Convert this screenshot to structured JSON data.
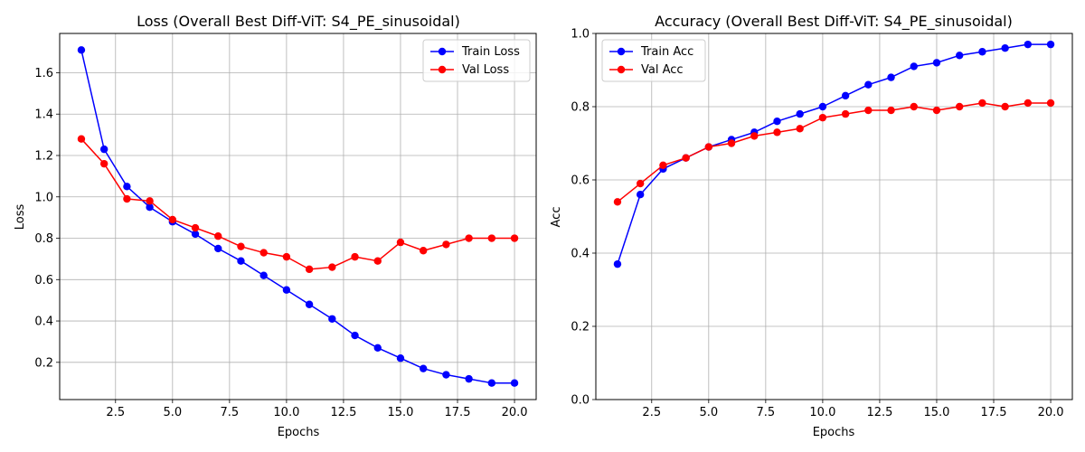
{
  "chart_data": [
    {
      "type": "line",
      "title": "Loss (Overall Best Diff-ViT: S4_PE_sinusoidal)",
      "xlabel": "Epochs",
      "ylabel": "Loss",
      "x": [
        1,
        2,
        3,
        4,
        5,
        6,
        7,
        8,
        9,
        10,
        11,
        12,
        13,
        14,
        15,
        16,
        17,
        18,
        19,
        20
      ],
      "xlim": [
        0.05,
        20.95
      ],
      "ylim": [
        0.02,
        1.79
      ],
      "xticks": [
        2.5,
        5.0,
        7.5,
        10.0,
        12.5,
        15.0,
        17.5,
        20.0
      ],
      "xtick_labels": [
        "2.5",
        "5.0",
        "7.5",
        "10.0",
        "12.5",
        "15.0",
        "17.5",
        "20.0"
      ],
      "yticks": [
        0.2,
        0.4,
        0.6,
        0.8,
        1.0,
        1.2,
        1.4,
        1.6
      ],
      "ytick_labels": [
        "0.2",
        "0.4",
        "0.6",
        "0.8",
        "1.0",
        "1.2",
        "1.4",
        "1.6"
      ],
      "grid": true,
      "legend_position": "top-right",
      "series": [
        {
          "name": "Train Loss",
          "color": "#0000ff",
          "marker": "circle",
          "values": [
            1.71,
            1.23,
            1.05,
            0.95,
            0.88,
            0.82,
            0.75,
            0.69,
            0.62,
            0.55,
            0.48,
            0.41,
            0.33,
            0.27,
            0.22,
            0.17,
            0.14,
            0.12,
            0.1,
            0.1
          ]
        },
        {
          "name": "Val Loss",
          "color": "#ff0000",
          "marker": "circle",
          "values": [
            1.28,
            1.16,
            0.99,
            0.98,
            0.89,
            0.85,
            0.81,
            0.76,
            0.73,
            0.71,
            0.65,
            0.66,
            0.71,
            0.69,
            0.78,
            0.74,
            0.77,
            0.8,
            0.8,
            0.8
          ]
        }
      ]
    },
    {
      "type": "line",
      "title": "Accuracy (Overall Best Diff-ViT: S4_PE_sinusoidal)",
      "xlabel": "Epochs",
      "ylabel": "Acc",
      "x": [
        1,
        2,
        3,
        4,
        5,
        6,
        7,
        8,
        9,
        10,
        11,
        12,
        13,
        14,
        15,
        16,
        17,
        18,
        19,
        20
      ],
      "xlim": [
        0.05,
        20.95
      ],
      "ylim": [
        0.0,
        1.0
      ],
      "xticks": [
        2.5,
        5.0,
        7.5,
        10.0,
        12.5,
        15.0,
        17.5,
        20.0
      ],
      "xtick_labels": [
        "2.5",
        "5.0",
        "7.5",
        "10.0",
        "12.5",
        "15.0",
        "17.5",
        "20.0"
      ],
      "yticks": [
        0.0,
        0.2,
        0.4,
        0.6,
        0.8,
        1.0
      ],
      "ytick_labels": [
        "0.0",
        "0.2",
        "0.4",
        "0.6",
        "0.8",
        "1.0"
      ],
      "grid": true,
      "legend_position": "top-left",
      "series": [
        {
          "name": "Train Acc",
          "color": "#0000ff",
          "marker": "circle",
          "values": [
            0.37,
            0.56,
            0.63,
            0.66,
            0.69,
            0.71,
            0.73,
            0.76,
            0.78,
            0.8,
            0.83,
            0.86,
            0.88,
            0.91,
            0.92,
            0.94,
            0.95,
            0.96,
            0.97,
            0.97
          ]
        },
        {
          "name": "Val Acc",
          "color": "#ff0000",
          "marker": "circle",
          "values": [
            0.54,
            0.59,
            0.64,
            0.66,
            0.69,
            0.7,
            0.72,
            0.73,
            0.74,
            0.77,
            0.78,
            0.79,
            0.79,
            0.8,
            0.79,
            0.8,
            0.81,
            0.8,
            0.81,
            0.81
          ]
        }
      ]
    }
  ]
}
